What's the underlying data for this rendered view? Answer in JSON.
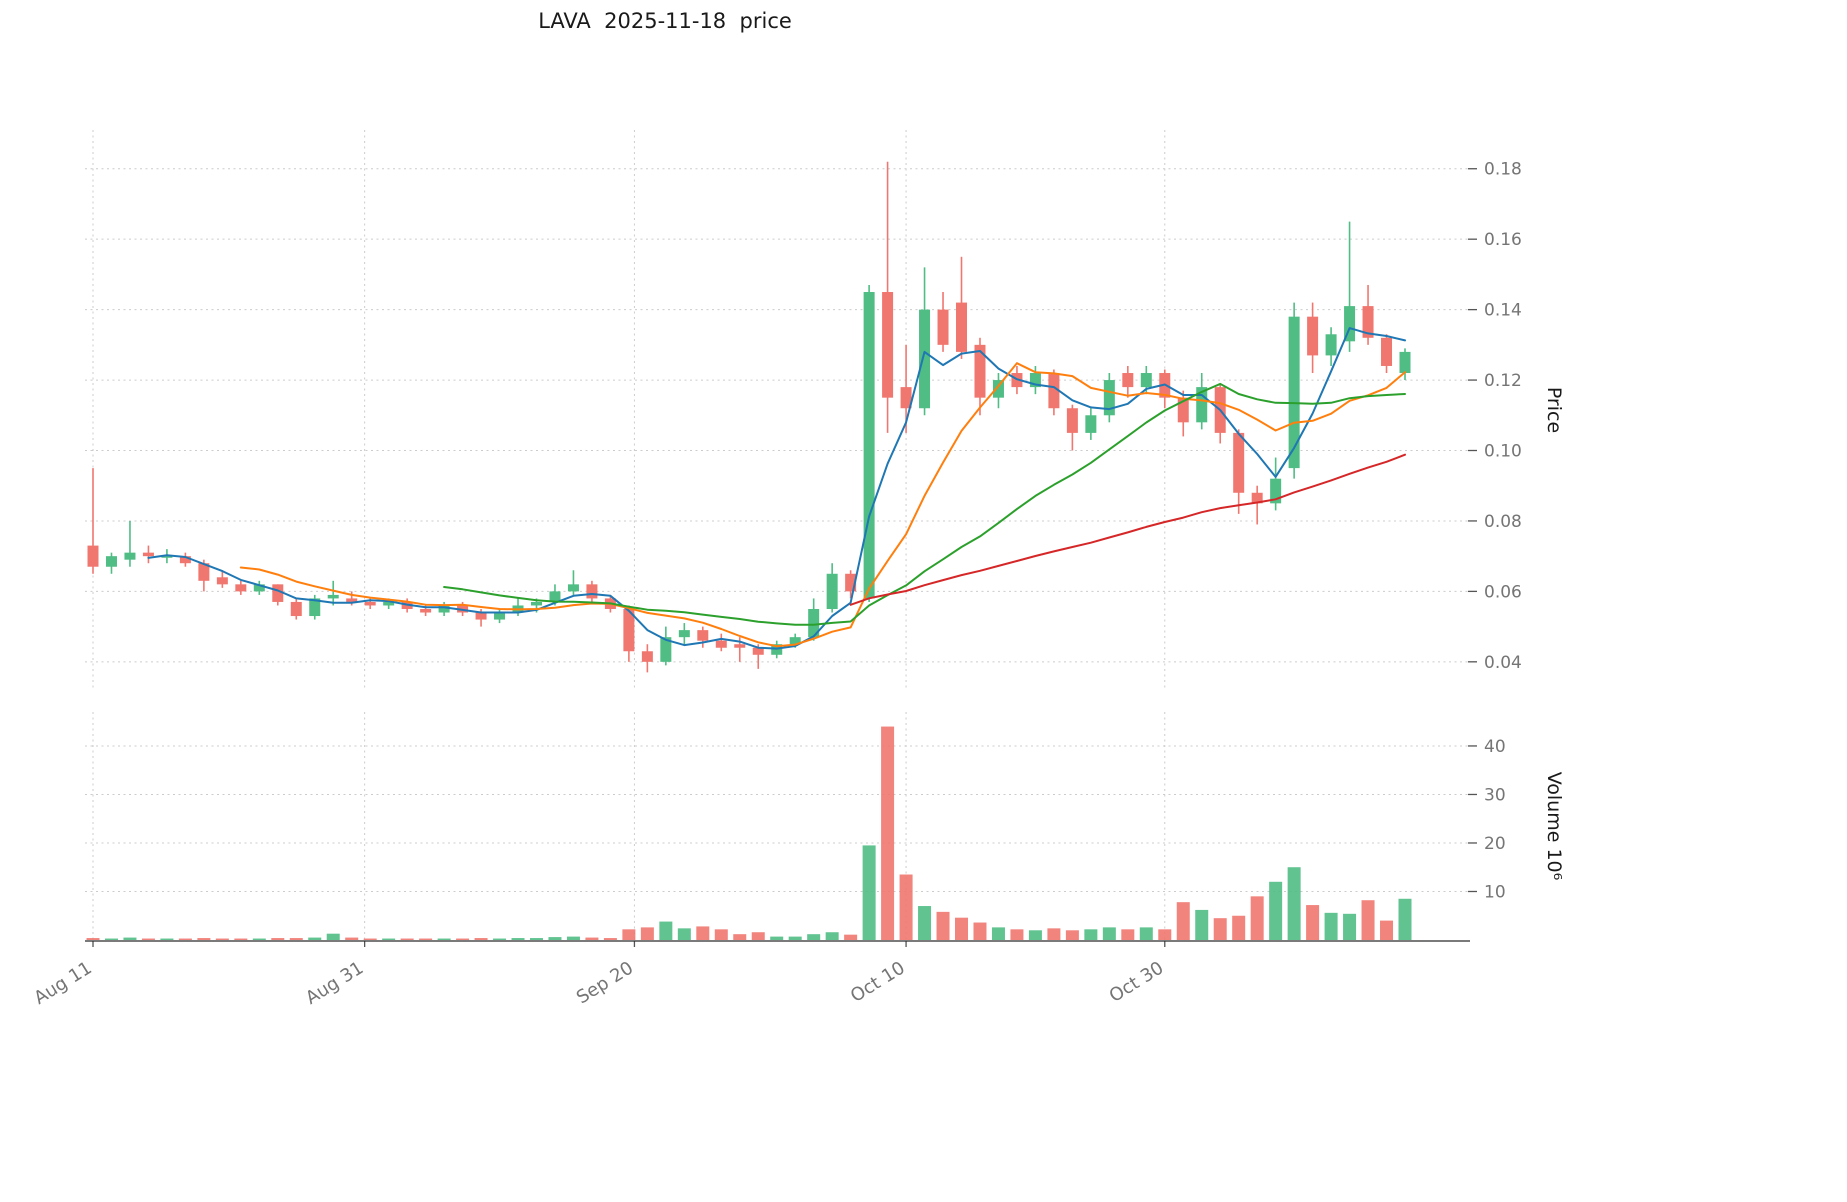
{
  "title": "LAVA  2025-11-18  price",
  "price_axis_label": "Price",
  "volume_axis_label": "Volume 10⁶",
  "colors": {
    "up": "#4fbd84",
    "down": "#f0776f",
    "ma_blue": "#1f77b4",
    "ma_orange": "#ff7f0e",
    "ma_green": "#2ca02c",
    "ma_red": "#d62728",
    "grid": "#cccccc",
    "tick_text": "#757575",
    "background": "#ffffff"
  },
  "chart_data": {
    "type": "candlestick+volume",
    "symbol": "LAVA",
    "as_of_date": "2025-11-18",
    "title": "LAVA  2025-11-18  price",
    "ylabel": "Price",
    "ylabel_lower": "Volume 10⁶",
    "grid": true,
    "price_ticks": [
      0.04,
      0.06,
      0.08,
      0.1,
      0.12,
      0.14,
      0.16,
      0.18
    ],
    "volume_ticks": [
      10,
      20,
      30,
      40
    ],
    "price_range": [
      0.032,
      0.191
    ],
    "volume_max": 47,
    "up_color": "#4fbd84",
    "down_color": "#f0776f",
    "x_ticks": [
      {
        "index": 0,
        "label": "Aug 11"
      },
      {
        "index": 14.7,
        "label": "Aug 31"
      },
      {
        "index": 29.3,
        "label": "Sep 20"
      },
      {
        "index": 44,
        "label": "Oct 10"
      },
      {
        "index": 58,
        "label": "Oct 30"
      }
    ],
    "moving_averages": [
      {
        "name": "ma4",
        "window": 4,
        "color": "#1f77b4"
      },
      {
        "name": "ma9",
        "window": 9,
        "color": "#ff7f0e"
      },
      {
        "name": "ma20",
        "window": 20,
        "color": "#2ca02c"
      },
      {
        "name": "ma42",
        "window": 42,
        "color": "#d62728"
      }
    ],
    "candles_format": [
      "date",
      "open",
      "high",
      "low",
      "close",
      "volume_millions"
    ],
    "candles": [
      [
        "Aug 11",
        0.073,
        0.095,
        0.065,
        0.067,
        0.4
      ],
      [
        "Aug 12",
        0.067,
        0.071,
        0.065,
        0.07,
        0.3
      ],
      [
        "Aug 13",
        0.069,
        0.08,
        0.067,
        0.071,
        0.5
      ],
      [
        "Aug 14",
        0.071,
        0.073,
        0.068,
        0.07,
        0.3
      ],
      [
        "Aug 15",
        0.07,
        0.072,
        0.068,
        0.07,
        0.3
      ],
      [
        "Aug 18",
        0.07,
        0.071,
        0.067,
        0.068,
        0.3
      ],
      [
        "Aug 19",
        0.068,
        0.069,
        0.06,
        0.063,
        0.4
      ],
      [
        "Aug 20",
        0.064,
        0.066,
        0.061,
        0.062,
        0.3
      ],
      [
        "Aug 21",
        0.062,
        0.063,
        0.059,
        0.06,
        0.3
      ],
      [
        "Aug 22",
        0.06,
        0.063,
        0.059,
        0.062,
        0.3
      ],
      [
        "Aug 25",
        0.062,
        0.062,
        0.056,
        0.057,
        0.4
      ],
      [
        "Aug 26",
        0.057,
        0.058,
        0.052,
        0.053,
        0.4
      ],
      [
        "Aug 27",
        0.053,
        0.059,
        0.052,
        0.058,
        0.5
      ],
      [
        "Aug 28",
        0.058,
        0.063,
        0.056,
        0.059,
        1.3
      ],
      [
        "Aug 29",
        0.058,
        0.06,
        0.056,
        0.057,
        0.5
      ],
      [
        "Sep 1",
        0.057,
        0.058,
        0.055,
        0.056,
        0.3
      ],
      [
        "Sep 2",
        0.056,
        0.058,
        0.055,
        0.057,
        0.3
      ],
      [
        "Sep 3",
        0.057,
        0.058,
        0.054,
        0.055,
        0.3
      ],
      [
        "Sep 4",
        0.055,
        0.056,
        0.053,
        0.054,
        0.3
      ],
      [
        "Sep 5",
        0.054,
        0.057,
        0.053,
        0.056,
        0.3
      ],
      [
        "Sep 8",
        0.056,
        0.057,
        0.053,
        0.054,
        0.3
      ],
      [
        "Sep 9",
        0.054,
        0.055,
        0.05,
        0.052,
        0.4
      ],
      [
        "Sep 10",
        0.052,
        0.055,
        0.051,
        0.054,
        0.3
      ],
      [
        "Sep 11",
        0.054,
        0.058,
        0.053,
        0.056,
        0.4
      ],
      [
        "Sep 12",
        0.056,
        0.058,
        0.054,
        0.057,
        0.4
      ],
      [
        "Sep 15",
        0.057,
        0.062,
        0.056,
        0.06,
        0.6
      ],
      [
        "Sep 16",
        0.06,
        0.066,
        0.059,
        0.062,
        0.7
      ],
      [
        "Sep 17",
        0.062,
        0.063,
        0.057,
        0.058,
        0.5
      ],
      [
        "Sep 18",
        0.058,
        0.059,
        0.054,
        0.055,
        0.4
      ],
      [
        "Sep 19",
        0.055,
        0.056,
        0.04,
        0.043,
        2.2
      ],
      [
        "Sep 22",
        0.043,
        0.045,
        0.037,
        0.04,
        2.6
      ],
      [
        "Sep 23",
        0.04,
        0.05,
        0.039,
        0.047,
        3.8
      ],
      [
        "Sep 24",
        0.047,
        0.051,
        0.045,
        0.049,
        2.4
      ],
      [
        "Sep 25",
        0.049,
        0.05,
        0.044,
        0.046,
        2.8
      ],
      [
        "Sep 26",
        0.046,
        0.048,
        0.043,
        0.044,
        2.2
      ],
      [
        "Sep 29",
        0.045,
        0.047,
        0.04,
        0.044,
        1.2
      ],
      [
        "Sep 30",
        0.044,
        0.045,
        0.038,
        0.042,
        1.6
      ],
      [
        "Oct 1",
        0.042,
        0.046,
        0.041,
        0.045,
        0.7
      ],
      [
        "Oct 2",
        0.045,
        0.048,
        0.044,
        0.047,
        0.7
      ],
      [
        "Oct 3",
        0.047,
        0.058,
        0.046,
        0.055,
        1.2
      ],
      [
        "Oct 6",
        0.055,
        0.068,
        0.054,
        0.065,
        1.6
      ],
      [
        "Oct 7",
        0.065,
        0.066,
        0.058,
        0.06,
        1.1
      ],
      [
        "Oct 8",
        0.058,
        0.147,
        0.057,
        0.145,
        19.5
      ],
      [
        "Oct 9",
        0.145,
        0.182,
        0.105,
        0.115,
        44.0
      ],
      [
        "Oct 10",
        0.118,
        0.13,
        0.105,
        0.112,
        13.5
      ],
      [
        "Oct 13",
        0.112,
        0.152,
        0.11,
        0.14,
        7.0
      ],
      [
        "Oct 14",
        0.14,
        0.145,
        0.128,
        0.13,
        5.8
      ],
      [
        "Oct 15",
        0.142,
        0.155,
        0.126,
        0.128,
        4.6
      ],
      [
        "Oct 16",
        0.13,
        0.132,
        0.11,
        0.115,
        3.6
      ],
      [
        "Oct 17",
        0.115,
        0.122,
        0.112,
        0.12,
        2.6
      ],
      [
        "Oct 20",
        0.122,
        0.124,
        0.116,
        0.118,
        2.2
      ],
      [
        "Oct 21",
        0.118,
        0.124,
        0.116,
        0.122,
        2.0
      ],
      [
        "Oct 22",
        0.122,
        0.123,
        0.11,
        0.112,
        2.4
      ],
      [
        "Oct 23",
        0.112,
        0.113,
        0.1,
        0.105,
        2.0
      ],
      [
        "Oct 24",
        0.105,
        0.112,
        0.103,
        0.11,
        2.2
      ],
      [
        "Oct 27",
        0.11,
        0.122,
        0.108,
        0.12,
        2.6
      ],
      [
        "Oct 28",
        0.122,
        0.124,
        0.115,
        0.118,
        2.2
      ],
      [
        "Oct 29",
        0.118,
        0.124,
        0.116,
        0.122,
        2.6
      ],
      [
        "Oct 30",
        0.122,
        0.123,
        0.112,
        0.115,
        2.2
      ],
      [
        "Oct 31",
        0.115,
        0.117,
        0.104,
        0.108,
        7.8
      ],
      [
        "Nov 3",
        0.108,
        0.122,
        0.106,
        0.118,
        6.2
      ],
      [
        "Nov 4",
        0.118,
        0.119,
        0.102,
        0.105,
        4.5
      ],
      [
        "Nov 5",
        0.105,
        0.106,
        0.082,
        0.088,
        5.0
      ],
      [
        "Nov 6",
        0.088,
        0.09,
        0.079,
        0.085,
        9.0
      ],
      [
        "Nov 7",
        0.085,
        0.098,
        0.083,
        0.092,
        12.0
      ],
      [
        "Nov 10",
        0.095,
        0.142,
        0.092,
        0.138,
        15.0
      ],
      [
        "Nov 11",
        0.138,
        0.142,
        0.122,
        0.127,
        7.2
      ],
      [
        "Nov 12",
        0.127,
        0.135,
        0.124,
        0.133,
        5.6
      ],
      [
        "Nov 13",
        0.131,
        0.165,
        0.128,
        0.141,
        5.4
      ],
      [
        "Nov 14",
        0.141,
        0.147,
        0.13,
        0.132,
        8.2
      ],
      [
        "Nov 17",
        0.132,
        0.133,
        0.122,
        0.124,
        4.0
      ],
      [
        "Nov 18",
        0.122,
        0.129,
        0.12,
        0.128,
        8.5
      ]
    ]
  }
}
